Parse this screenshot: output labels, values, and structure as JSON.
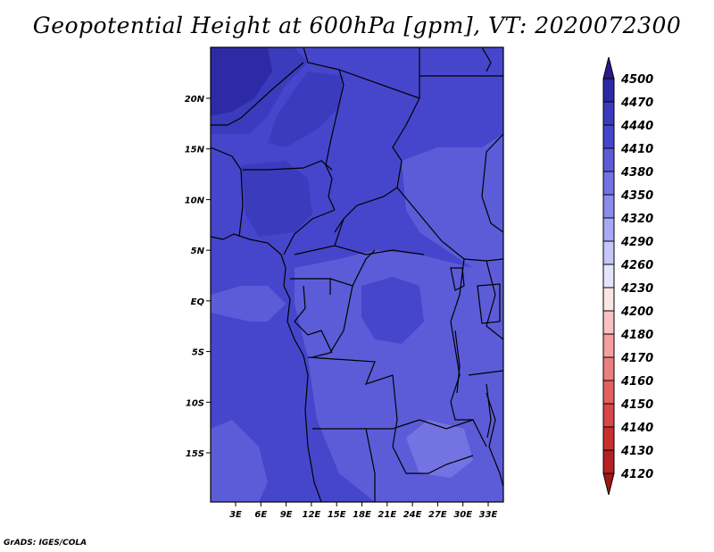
{
  "title": "Geopotential Height at 600hPa [gpm], VT: 2020072300",
  "credit": "GrADS: IGES/COLA",
  "map": {
    "lat_ticks": [
      {
        "value": 20,
        "label": "20N"
      },
      {
        "value": 15,
        "label": "15N"
      },
      {
        "value": 10,
        "label": "10N"
      },
      {
        "value": 5,
        "label": "5N"
      },
      {
        "value": 0,
        "label": "EQ"
      },
      {
        "value": -5,
        "label": "5S"
      },
      {
        "value": -10,
        "label": "10S"
      },
      {
        "value": -15,
        "label": "15S"
      }
    ],
    "lon_ticks": [
      {
        "value": 3,
        "label": "3E"
      },
      {
        "value": 6,
        "label": "6E"
      },
      {
        "value": 9,
        "label": "9E"
      },
      {
        "value": 12,
        "label": "12E"
      },
      {
        "value": 15,
        "label": "15E"
      },
      {
        "value": 18,
        "label": "18E"
      },
      {
        "value": 21,
        "label": "21E"
      },
      {
        "value": 24,
        "label": "24E"
      },
      {
        "value": 27,
        "label": "27E"
      },
      {
        "value": 30,
        "label": "30E"
      },
      {
        "value": 33,
        "label": "33E"
      }
    ],
    "lon_range": [
      0,
      35
    ],
    "lat_range": [
      -20,
      25
    ]
  },
  "colorbar": {
    "levels": [
      "4500",
      "4470",
      "4440",
      "4410",
      "4380",
      "4350",
      "4320",
      "4290",
      "4260",
      "4230",
      "4200",
      "4180",
      "4170",
      "4160",
      "4150",
      "4140",
      "4130",
      "4120"
    ],
    "colors": [
      "#2a1a8e",
      "#2e2aa6",
      "#3b3bbe",
      "#4646cc",
      "#5c5cd8",
      "#7373e3",
      "#8b8bec",
      "#a8a8f3",
      "#c6c6f8",
      "#e4e4fb",
      "#fbe4e4",
      "#f8c2c2",
      "#f2a0a0",
      "#eb8080",
      "#e36060",
      "#d84646",
      "#c83030",
      "#b42222",
      "#a01616"
    ]
  }
}
